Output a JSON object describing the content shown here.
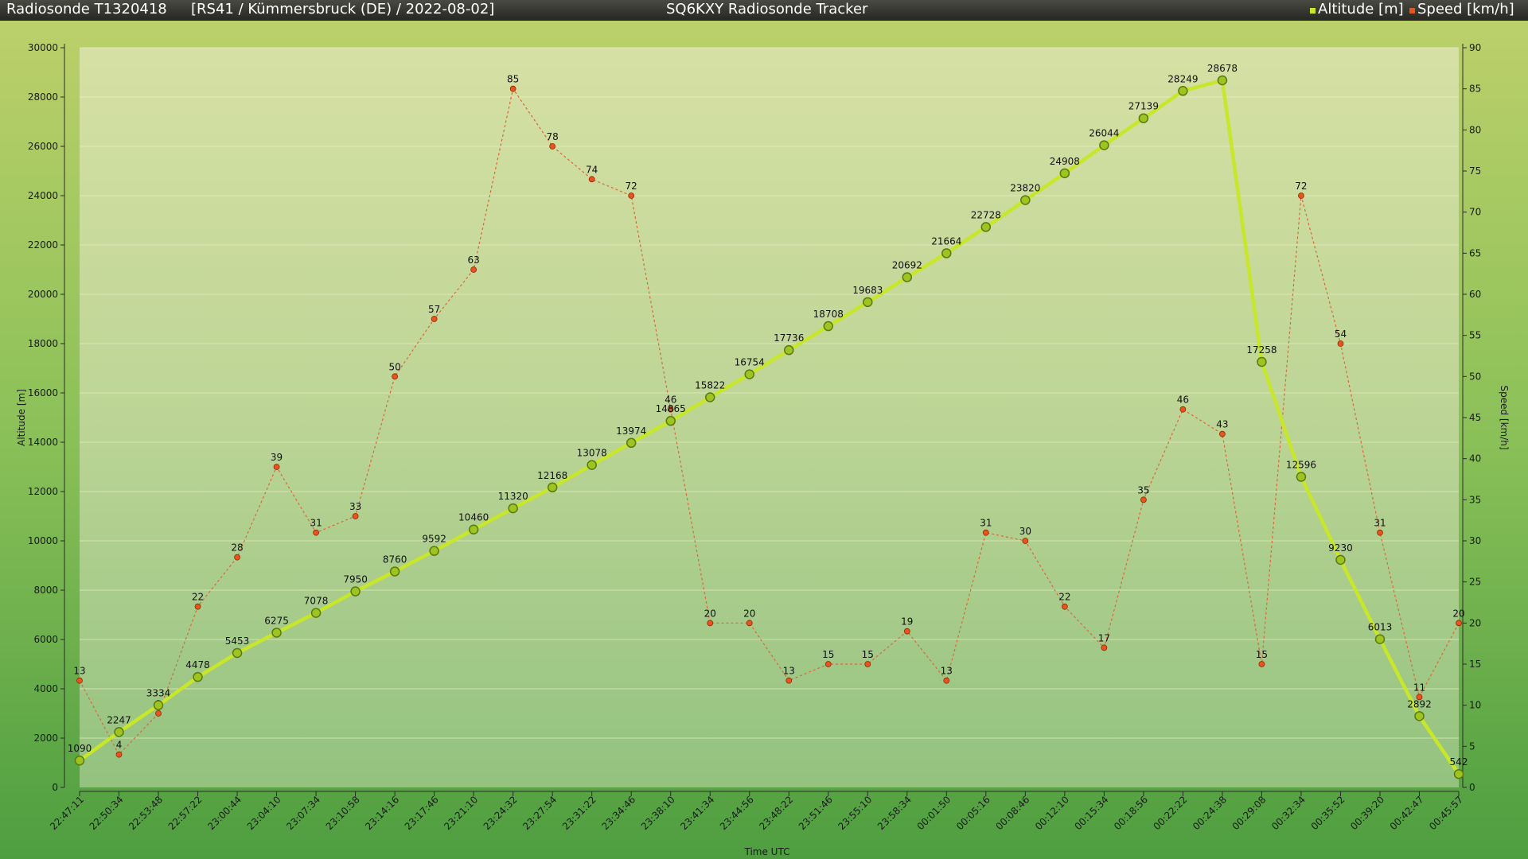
{
  "header": {
    "radiosonde": "Radiosonde T1320418",
    "mission": "[RS41 / Kümmersbruck (DE) / 2022-08-02]",
    "app_title": "SQ6KXY Radiosonde Tracker",
    "legend_altitude": "Altitude [m]",
    "legend_speed": "Speed [km/h]"
  },
  "chart_data": {
    "type": "line",
    "xlabel": "Time UTC",
    "ylabel": "Altitude [m]",
    "y2label": "Speed [km/h]",
    "ylim": [
      0,
      30000
    ],
    "y2lim": [
      0,
      90
    ],
    "yticks": [
      0,
      2000,
      4000,
      6000,
      8000,
      10000,
      12000,
      14000,
      16000,
      18000,
      20000,
      22000,
      24000,
      26000,
      28000,
      30000
    ],
    "y2ticks": [
      0,
      5,
      10,
      15,
      20,
      25,
      30,
      35,
      40,
      45,
      50,
      55,
      60,
      65,
      70,
      75,
      80,
      85,
      90
    ],
    "grid": true,
    "legend": "top-right",
    "x": [
      "22:47:11",
      "22:50:34",
      "22:53:48",
      "22:57:22",
      "23:00:44",
      "23:04:10",
      "23:07:34",
      "23:10:58",
      "23:14:16",
      "23:17:46",
      "23:21:10",
      "23:24:32",
      "23:27:54",
      "23:31:22",
      "23:34:46",
      "23:38:10",
      "23:41:34",
      "23:44:56",
      "23:48:22",
      "23:51:46",
      "23:55:10",
      "23:58:34",
      "00:01:50",
      "00:05:16",
      "00:08:46",
      "00:12:10",
      "00:15:34",
      "00:18:56",
      "00:22:22",
      "00:24:38",
      "00:29:08",
      "00:32:34",
      "00:35:52",
      "00:39:20",
      "00:42:47",
      "00:45:57"
    ],
    "series": [
      {
        "name": "Altitude [m]",
        "axis": "left",
        "color": "#c8e62a",
        "values": [
          1090,
          2247,
          3334,
          4478,
          5453,
          6275,
          7078,
          7950,
          8760,
          9592,
          10460,
          11320,
          12168,
          13078,
          13974,
          14865,
          15822,
          16754,
          17736,
          18708,
          19683,
          20692,
          21664,
          22728,
          23820,
          24908,
          26044,
          27139,
          28249,
          28678,
          17258,
          12596,
          9230,
          6013,
          2892,
          542
        ]
      },
      {
        "name": "Speed [km/h]",
        "axis": "right",
        "color": "#e8541c",
        "values": [
          13,
          4,
          9,
          22,
          28,
          39,
          31,
          33,
          50,
          57,
          63,
          85,
          78,
          74,
          72,
          46,
          20,
          20,
          13,
          15,
          15,
          19,
          13,
          31,
          30,
          22,
          17,
          35,
          46,
          43,
          15,
          72,
          54,
          31,
          11,
          20
        ]
      }
    ]
  }
}
